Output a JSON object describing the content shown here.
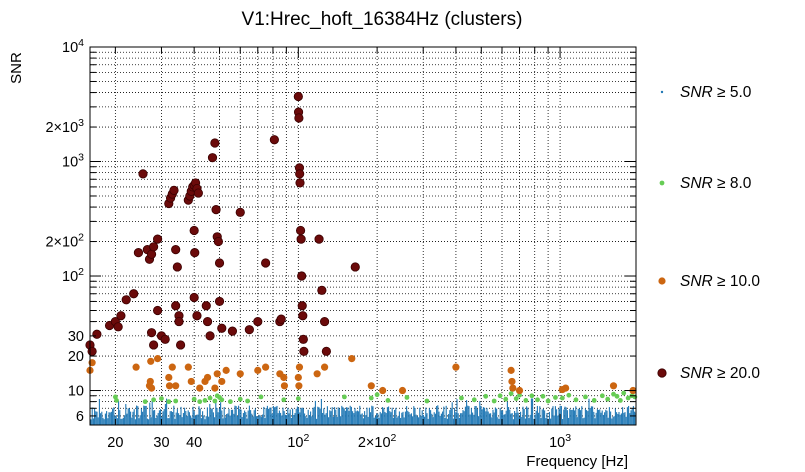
{
  "chart_data": {
    "type": "scatter",
    "title": "V1:Hrec_hoft_16384Hz (clusters)",
    "xlabel": "Frequency [Hz]",
    "ylabel": "SNR",
    "xscale": "log",
    "yscale": "log",
    "xlim": [
      16,
      1950
    ],
    "ylim": [
      5,
      10000
    ],
    "grid": true,
    "x_ticks": [
      {
        "v": 20,
        "label": "20"
      },
      {
        "v": 30,
        "label": "30"
      },
      {
        "v": 40,
        "label": "40"
      },
      {
        "v": 100,
        "label": "10",
        "exp": "2"
      },
      {
        "v": 200,
        "label": "2×10",
        "exp": "2"
      },
      {
        "v": 1000,
        "label": "10",
        "exp": "3"
      }
    ],
    "y_ticks": [
      {
        "v": 6,
        "label": "6"
      },
      {
        "v": 10,
        "label": "10"
      },
      {
        "v": 20,
        "label": "20"
      },
      {
        "v": 30,
        "label": "30"
      },
      {
        "v": 100,
        "label": "10",
        "exp": "2"
      },
      {
        "v": 200,
        "label": "2×10",
        "exp": "2"
      },
      {
        "v": 1000,
        "label": "10",
        "exp": "3"
      },
      {
        "v": 2000,
        "label": "2×10",
        "exp": "3"
      },
      {
        "v": 10000,
        "label": "10",
        "exp": "4"
      }
    ],
    "legend": [
      {
        "label": "SNR ≥ 5.0",
        "color": "#1f77b4"
      },
      {
        "label": "SNR ≥ 8.0",
        "color": "#66cc55"
      },
      {
        "label": "SNR ≥ 10.0",
        "color": "#cc6611"
      },
      {
        "label": "SNR ≥ 20.0",
        "color": "#6b0a0a"
      }
    ],
    "series": [
      {
        "name": "SNR ≥ 5.0",
        "color": "#1f77b4",
        "description": "dense band of clusters between SNR 5 and 8 across the full frequency range"
      },
      {
        "name": "SNR ≥ 8.0",
        "color": "#66cc55",
        "points": [
          [
            20,
            8.8
          ],
          [
            20.2,
            8.2
          ],
          [
            26,
            8.0
          ],
          [
            28,
            8.3
          ],
          [
            30,
            8.5
          ],
          [
            32,
            8.0
          ],
          [
            34,
            8.1
          ],
          [
            40,
            8.4
          ],
          [
            42,
            8.0
          ],
          [
            44,
            8.2
          ],
          [
            46,
            8.6
          ],
          [
            48,
            8.1
          ],
          [
            49,
            9.0
          ],
          [
            50,
            8.7
          ],
          [
            51,
            8.3
          ],
          [
            55,
            8.0
          ],
          [
            60,
            8.4
          ],
          [
            64,
            8.1
          ],
          [
            72,
            8.8
          ],
          [
            88,
            8.3
          ],
          [
            100,
            8.5
          ],
          [
            150,
            8.8
          ],
          [
            190,
            8.6
          ],
          [
            200,
            9.2
          ],
          [
            220,
            8.2
          ],
          [
            260,
            8.7
          ],
          [
            310,
            8.1
          ],
          [
            420,
            8.6
          ],
          [
            470,
            8.3
          ],
          [
            520,
            8.9
          ],
          [
            560,
            8.1
          ],
          [
            590,
            9.0
          ],
          [
            620,
            8.4
          ],
          [
            650,
            9.4
          ],
          [
            680,
            8.5
          ],
          [
            700,
            9.1
          ],
          [
            740,
            8.2
          ],
          [
            780,
            9.0
          ],
          [
            820,
            8.3
          ],
          [
            860,
            8.9
          ],
          [
            900,
            8.1
          ],
          [
            960,
            8.7
          ],
          [
            1020,
            8.6
          ],
          [
            1080,
            9.1
          ],
          [
            1150,
            8.3
          ],
          [
            1250,
            8.8
          ],
          [
            1350,
            8.2
          ],
          [
            1450,
            9.0
          ],
          [
            1520,
            8.4
          ],
          [
            1600,
            9.3
          ],
          [
            1650,
            8.9
          ],
          [
            1700,
            8.2
          ],
          [
            1750,
            9.5
          ],
          [
            1820,
            8.6
          ],
          [
            1880,
            9.0
          ],
          [
            1930,
            8.8
          ]
        ]
      },
      {
        "name": "SNR ≥ 10.0",
        "color": "#cc6611",
        "points": [
          [
            16,
            15
          ],
          [
            16.3,
            17.5
          ],
          [
            24,
            16
          ],
          [
            27,
            11
          ],
          [
            27.2,
            12
          ],
          [
            27.5,
            10.5
          ],
          [
            27.3,
            18
          ],
          [
            29,
            19
          ],
          [
            32,
            13
          ],
          [
            32.2,
            11
          ],
          [
            33,
            16
          ],
          [
            34,
            11
          ],
          [
            38,
            16
          ],
          [
            39,
            12
          ],
          [
            42,
            10.5
          ],
          [
            44,
            12
          ],
          [
            45,
            13
          ],
          [
            48,
            10.5
          ],
          [
            49,
            14
          ],
          [
            51,
            12
          ],
          [
            53,
            15
          ],
          [
            60,
            14
          ],
          [
            70,
            15
          ],
          [
            75,
            16
          ],
          [
            85,
            14
          ],
          [
            88,
            13
          ],
          [
            88.5,
            11
          ],
          [
            100,
            13
          ],
          [
            100.5,
            11
          ],
          [
            101,
            16
          ],
          [
            118,
            14
          ],
          [
            126,
            16
          ],
          [
            160,
            19
          ],
          [
            190,
            11
          ],
          [
            210,
            10
          ],
          [
            250,
            10
          ],
          [
            400,
            16
          ],
          [
            650,
            15
          ],
          [
            655,
            12
          ],
          [
            660,
            10.5
          ],
          [
            700,
            10
          ],
          [
            1020,
            10.2
          ],
          [
            1050,
            10.5
          ],
          [
            1600,
            11
          ],
          [
            1900,
            10
          ]
        ]
      },
      {
        "name": "SNR ≥ 20.0",
        "color": "#6b0a0a",
        "points": [
          [
            16,
            25
          ],
          [
            16.3,
            22
          ],
          [
            17,
            31
          ],
          [
            19,
            37
          ],
          [
            20,
            40
          ],
          [
            20.5,
            36
          ],
          [
            21,
            45
          ],
          [
            22,
            62
          ],
          [
            23.5,
            70
          ],
          [
            24.5,
            160
          ],
          [
            25.5,
            780
          ],
          [
            26.5,
            170
          ],
          [
            27,
            140
          ],
          [
            27.5,
            155
          ],
          [
            28,
            180
          ],
          [
            27.5,
            32
          ],
          [
            28,
            25
          ],
          [
            29,
            210
          ],
          [
            29,
            50
          ],
          [
            30,
            30
          ],
          [
            31,
            28
          ],
          [
            32,
            430
          ],
          [
            32.5,
            480
          ],
          [
            33,
            520
          ],
          [
            33.5,
            560
          ],
          [
            34,
            170
          ],
          [
            34.5,
            120
          ],
          [
            34,
            55
          ],
          [
            35,
            45
          ],
          [
            35,
            40
          ],
          [
            35.5,
            25
          ],
          [
            38,
            460
          ],
          [
            38.5,
            500
          ],
          [
            39,
            550
          ],
          [
            39.5,
            600
          ],
          [
            40,
            620
          ],
          [
            40.5,
            650
          ],
          [
            41,
            580
          ],
          [
            41.5,
            530
          ],
          [
            40,
            250
          ],
          [
            40.2,
            160
          ],
          [
            40,
            65
          ],
          [
            41,
            45
          ],
          [
            44.5,
            55
          ],
          [
            45,
            40
          ],
          [
            46,
            30
          ],
          [
            47,
            1080
          ],
          [
            48,
            1450
          ],
          [
            48.5,
            380
          ],
          [
            49,
            220
          ],
          [
            49.5,
            200
          ],
          [
            50,
            130
          ],
          [
            50,
            60
          ],
          [
            51,
            35
          ],
          [
            56,
            33
          ],
          [
            60,
            360
          ],
          [
            65,
            34
          ],
          [
            70,
            40
          ],
          [
            75,
            130
          ],
          [
            81,
            1550
          ],
          [
            85,
            40
          ],
          [
            86,
            42
          ],
          [
            100,
            3700
          ],
          [
            100.2,
            2700
          ],
          [
            100.5,
            2400
          ],
          [
            101,
            880
          ],
          [
            101.2,
            780
          ],
          [
            101.5,
            650
          ],
          [
            102,
            250
          ],
          [
            102.5,
            210
          ],
          [
            103,
            100
          ],
          [
            103.5,
            55
          ],
          [
            104,
            45
          ],
          [
            104.5,
            28
          ],
          [
            105,
            22
          ],
          [
            120,
            210
          ],
          [
            123,
            75
          ],
          [
            126,
            40
          ],
          [
            128,
            22
          ],
          [
            165,
            120
          ]
        ]
      }
    ]
  }
}
